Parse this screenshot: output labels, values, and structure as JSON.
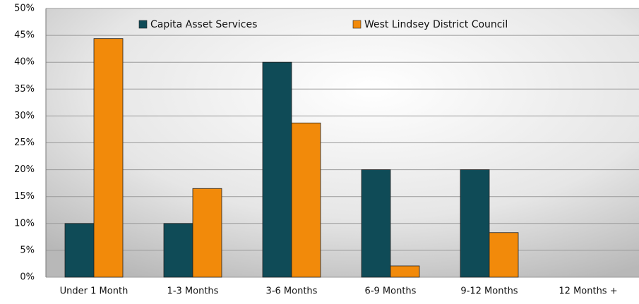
{
  "chart_data": {
    "type": "bar",
    "categories": [
      "Under 1 Month",
      "1-3 Months",
      "3-6 Months",
      "6-9 Months",
      "9-12 Months",
      "12 Months +"
    ],
    "series": [
      {
        "name": "Capita Asset Services",
        "color": "#0f4b57",
        "values": [
          10,
          10,
          40,
          20,
          20,
          0
        ]
      },
      {
        "name": "West Lindsey District Council",
        "color": "#f28a0a",
        "values": [
          44.4,
          16.5,
          28.7,
          2.1,
          8.3,
          0
        ]
      }
    ],
    "ylim": [
      0,
      50
    ],
    "yticks": [
      {
        "value": 0,
        "label": "0%"
      },
      {
        "value": 5,
        "label": "5%"
      },
      {
        "value": 10,
        "label": "10%"
      },
      {
        "value": 15,
        "label": "15%"
      },
      {
        "value": 20,
        "label": "20%"
      },
      {
        "value": 25,
        "label": "25%"
      },
      {
        "value": 30,
        "label": "30%"
      },
      {
        "value": 35,
        "label": "35%"
      },
      {
        "value": 40,
        "label": "40%"
      },
      {
        "value": 45,
        "label": "45%"
      },
      {
        "value": 50,
        "label": "50%"
      }
    ],
    "grid": true,
    "legend": "top"
  }
}
